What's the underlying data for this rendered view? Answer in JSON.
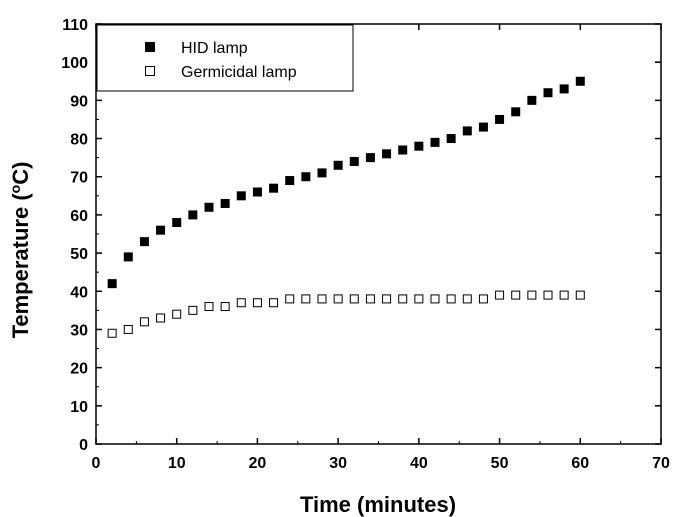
{
  "chart_data": {
    "type": "scatter",
    "xlabel": "Time (minutes)",
    "ylabel": "Temperature (",
    "ylabel_sup": "o",
    "ylabel_unit": "C)",
    "xlim": [
      0,
      70
    ],
    "ylim": [
      0,
      110
    ],
    "xticks": [
      0,
      10,
      20,
      30,
      40,
      50,
      60,
      70
    ],
    "yticks": [
      0,
      10,
      20,
      30,
      40,
      50,
      60,
      70,
      80,
      90,
      100,
      110
    ],
    "grid": false,
    "legend_position": "top-left",
    "x": [
      2,
      4,
      6,
      8,
      10,
      12,
      14,
      16,
      18,
      20,
      22,
      24,
      26,
      28,
      30,
      32,
      34,
      36,
      38,
      40,
      42,
      44,
      46,
      48,
      50,
      52,
      54,
      56,
      58,
      60
    ],
    "series": [
      {
        "name": "HID lamp",
        "marker": "filled-square",
        "color": "#000000",
        "values": [
          42,
          49,
          53,
          56,
          58,
          60,
          62,
          63,
          65,
          66,
          67,
          69,
          70,
          71,
          73,
          74,
          75,
          76,
          77,
          78,
          79,
          80,
          82,
          83,
          85,
          87,
          90,
          92,
          93,
          95
        ]
      },
      {
        "name": "Germicidal lamp",
        "marker": "open-square",
        "color": "#000000",
        "values": [
          29,
          30,
          32,
          33,
          34,
          35,
          36,
          36,
          37,
          37,
          37,
          38,
          38,
          38,
          38,
          38,
          38,
          38,
          38,
          38,
          38,
          38,
          38,
          38,
          39,
          39,
          39,
          39,
          39,
          39
        ]
      }
    ]
  }
}
